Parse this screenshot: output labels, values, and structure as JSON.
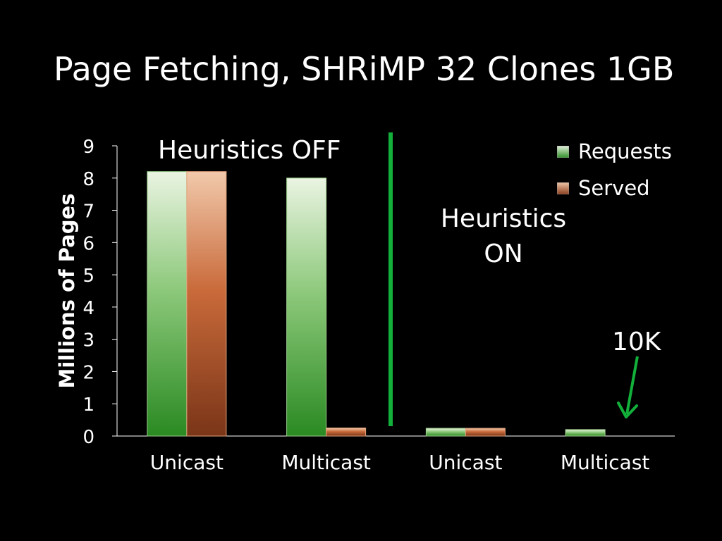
{
  "title": "Page Fetching, SHRiMP 32 Clones 1GB",
  "annotations": {
    "heuristics_off": "Heuristics OFF",
    "heuristics_on": "Heuristics ON",
    "ten_k": "10K"
  },
  "colors": {
    "background": "#000000",
    "text": "#ffffff",
    "requests": "#3a9a30",
    "served": "#b45a2c",
    "divider": "#12b03a",
    "arrow": "#12b03a"
  },
  "chart_data": {
    "type": "bar",
    "ylabel": "Millions of Pages",
    "xlabel": "",
    "ylim": [
      0,
      9
    ],
    "yticks": [
      0,
      1,
      2,
      3,
      4,
      5,
      6,
      7,
      8,
      9
    ],
    "categories": [
      "Unicast",
      "Multicast",
      "Unicast",
      "Multicast"
    ],
    "series": [
      {
        "name": "Requests",
        "values": [
          8.2,
          8.0,
          0.24,
          0.2
        ]
      },
      {
        "name": "Served",
        "values": [
          8.2,
          0.25,
          0.24,
          0.01
        ]
      }
    ],
    "legend": "top-right",
    "grid": false
  }
}
